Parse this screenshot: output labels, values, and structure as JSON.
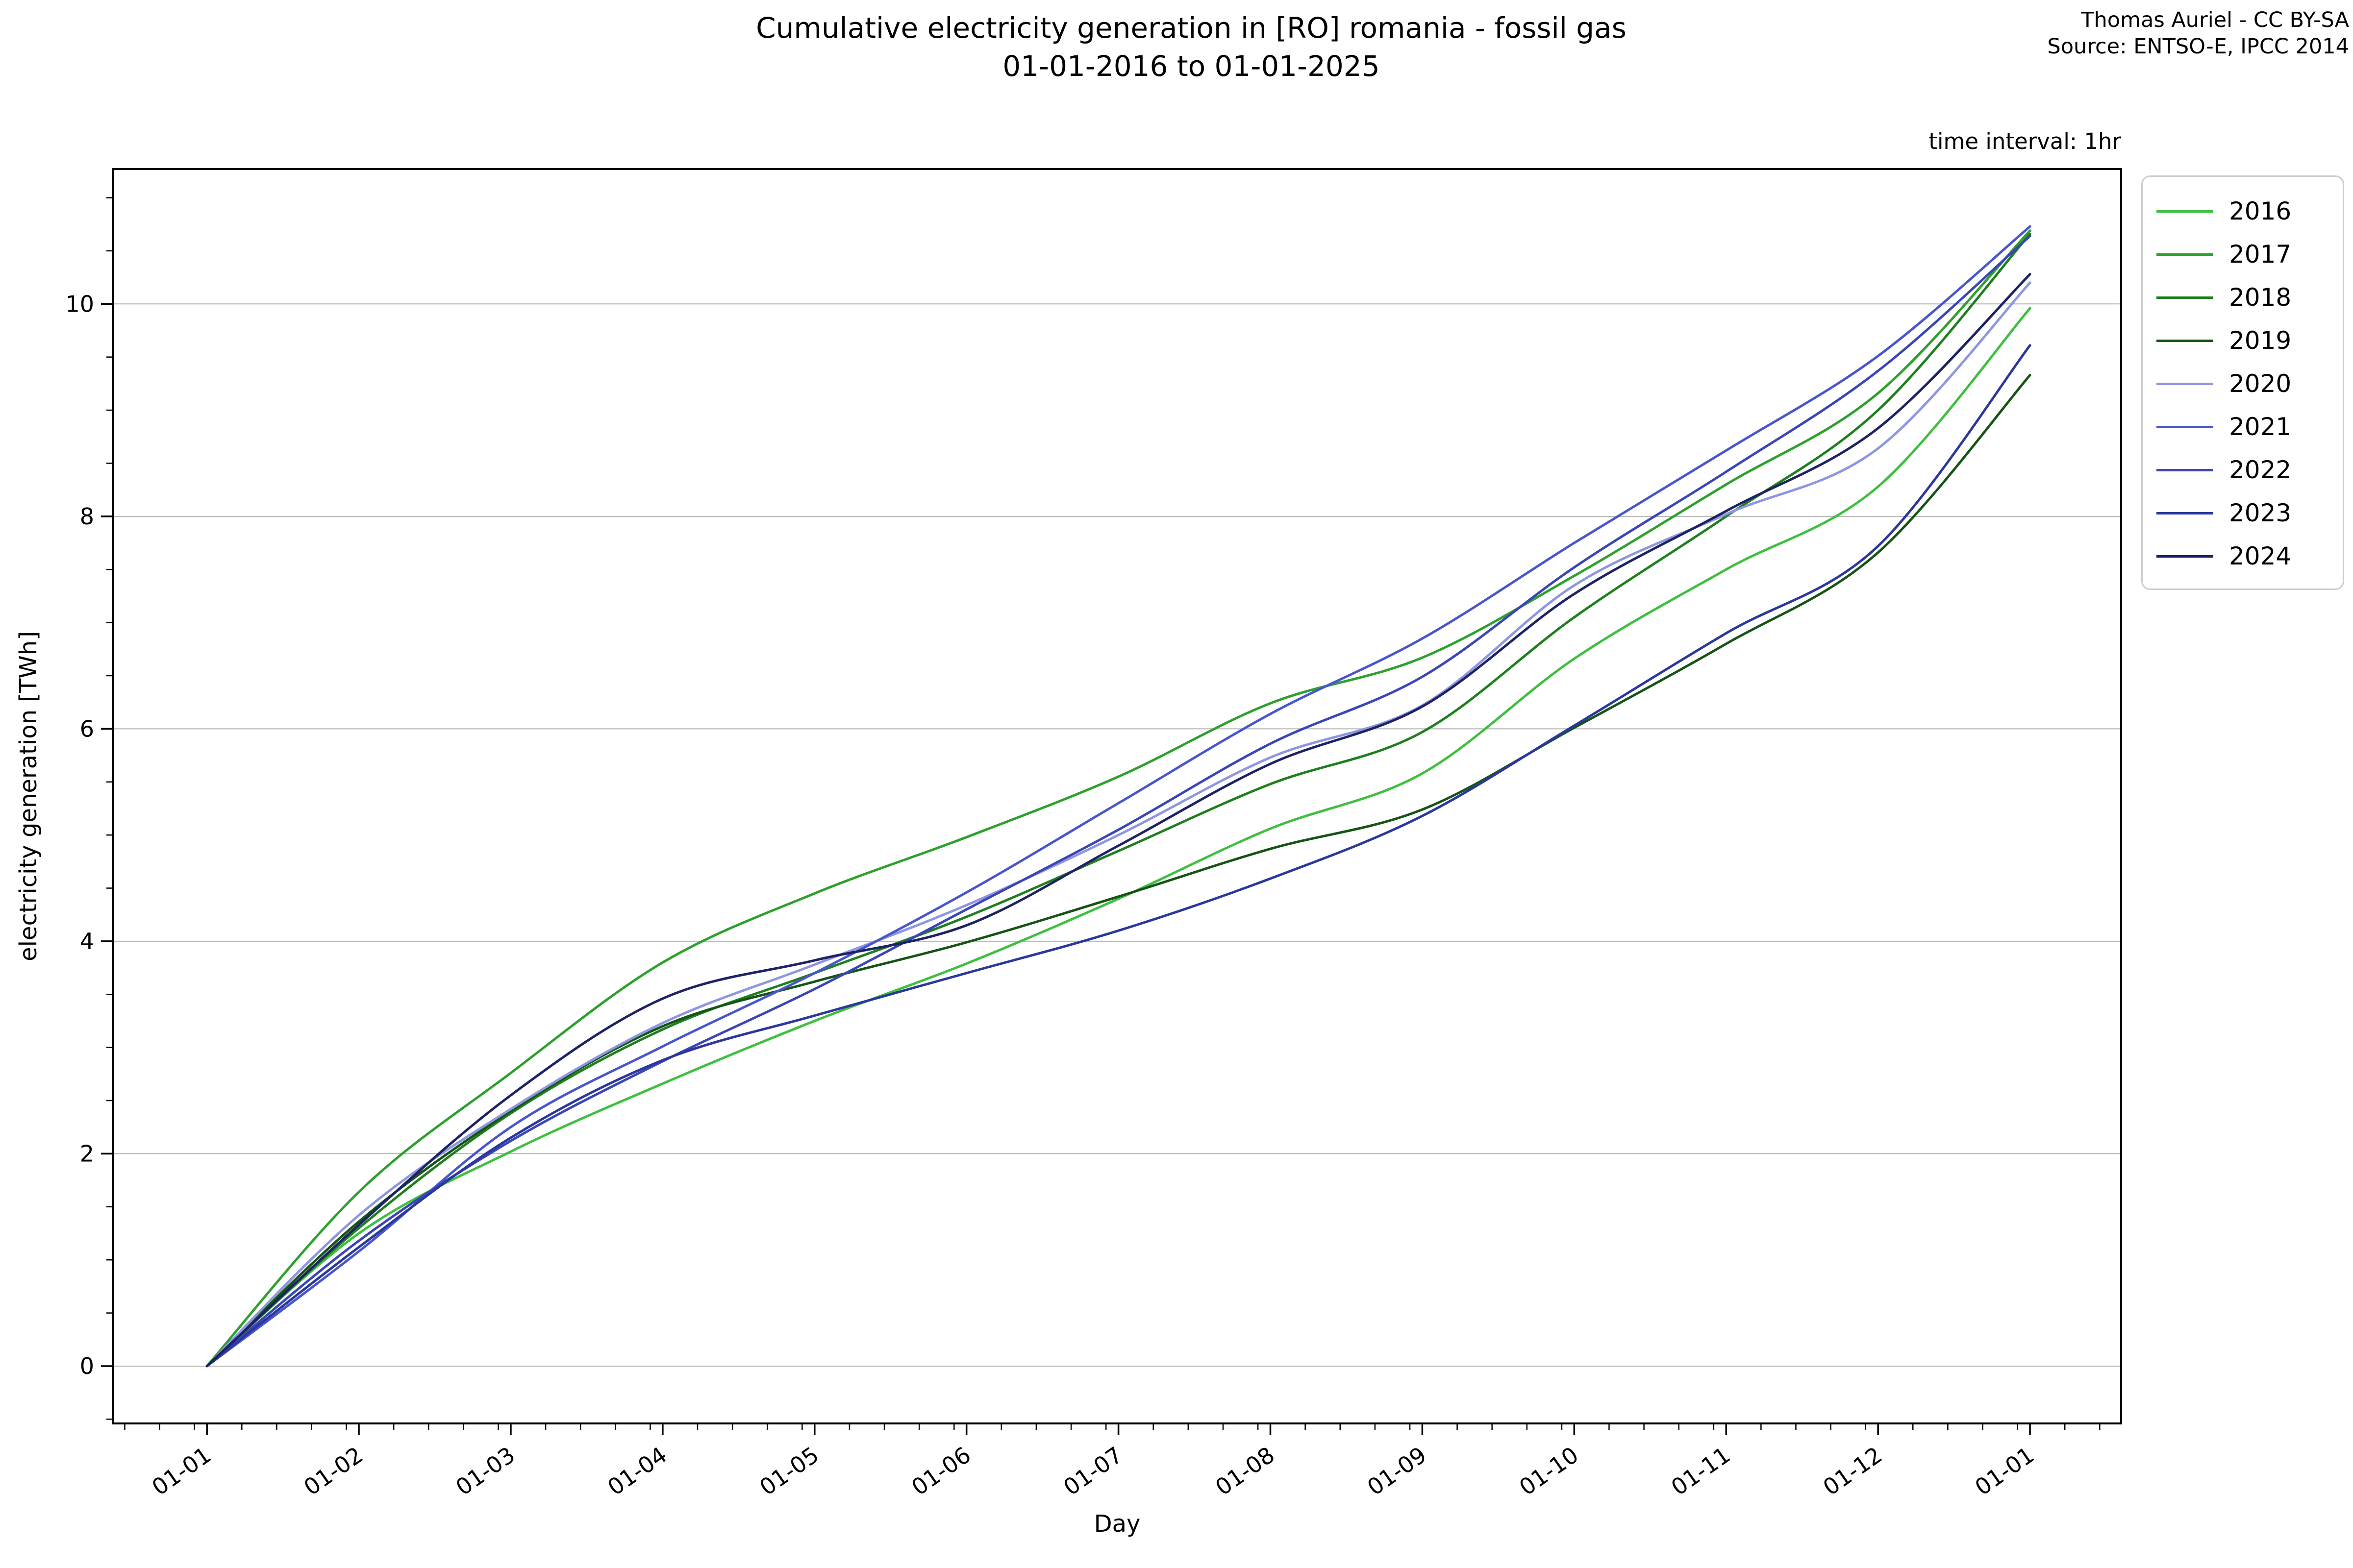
{
  "title": {
    "line1": "Cumulative electricity generation in [RO] romania - fossil gas",
    "line2": "01-01-2016 to 01-01-2025"
  },
  "attribution": {
    "line1": "Thomas Auriel - CC BY-SA",
    "line2": "Source: ENTSO-E, IPCC 2014"
  },
  "annotations": {
    "time_interval": "time interval: 1hr"
  },
  "chart_data": {
    "type": "line",
    "title": "Cumulative electricity generation in [RO] romania - fossil gas 01-01-2016 to 01-01-2025",
    "xlabel": "Day",
    "ylabel": "electricity generation [TWh]",
    "x_tick_labels": [
      "01-01",
      "01-02",
      "01-03",
      "01-04",
      "01-05",
      "01-06",
      "01-07",
      "01-08",
      "01-09",
      "01-10",
      "01-11",
      "01-12",
      "01-01"
    ],
    "y_ticks": [
      0,
      2,
      4,
      6,
      8,
      10
    ],
    "xlim_months": [
      -0.62,
      12.6
    ],
    "ylim": [
      -0.54,
      11.27
    ],
    "grid": "horizontal-only",
    "grid_color": "#b2b2b2",
    "legend_position": "outside-upper-right",
    "x_units": "month start index, 0 = Jan 1, 12 = next Jan 1",
    "series": [
      {
        "name": "2016",
        "color": "#3fbf3f",
        "values": [
          0,
          1.25,
          2.02,
          2.66,
          3.25,
          3.79,
          4.4,
          5.06,
          5.58,
          6.66,
          7.5,
          8.28,
          9.96
        ]
      },
      {
        "name": "2017",
        "color": "#2da02d",
        "values": [
          0,
          1.64,
          2.76,
          3.8,
          4.45,
          4.98,
          5.55,
          6.24,
          6.67,
          7.44,
          8.3,
          9.16,
          10.69
        ]
      },
      {
        "name": "2018",
        "color": "#1f7f1f",
        "values": [
          0,
          1.3,
          2.38,
          3.17,
          3.7,
          4.23,
          4.85,
          5.48,
          5.97,
          7.05,
          8.0,
          9.0,
          10.66
        ]
      },
      {
        "name": "2019",
        "color": "#155415",
        "values": [
          0,
          1.36,
          2.4,
          3.2,
          3.62,
          3.99,
          4.42,
          4.87,
          5.24,
          6.01,
          6.8,
          7.66,
          9.33
        ]
      },
      {
        "name": "2020",
        "color": "#8e96e0",
        "values": [
          0,
          1.42,
          2.42,
          3.23,
          3.78,
          4.34,
          5.0,
          5.73,
          6.22,
          7.35,
          8.02,
          8.64,
          10.2
        ]
      },
      {
        "name": "2021",
        "color": "#4856cd",
        "values": [
          0,
          1.08,
          2.25,
          3.01,
          3.7,
          4.46,
          5.3,
          6.14,
          6.85,
          7.75,
          8.62,
          9.51,
          10.73
        ]
      },
      {
        "name": "2022",
        "color": "#3945b8",
        "values": [
          0,
          1.18,
          2.12,
          2.87,
          3.55,
          4.3,
          5.05,
          5.86,
          6.49,
          7.52,
          8.42,
          9.37,
          10.64
        ]
      },
      {
        "name": "2023",
        "color": "#2b379c",
        "values": [
          0,
          1.12,
          2.15,
          2.88,
          3.3,
          3.7,
          4.1,
          4.59,
          5.18,
          6.03,
          6.9,
          7.72,
          9.61
        ]
      },
      {
        "name": "2024",
        "color": "#1c2263",
        "values": [
          0,
          1.33,
          2.55,
          3.46,
          3.82,
          4.15,
          4.9,
          5.67,
          6.21,
          7.27,
          8.05,
          8.83,
          10.28
        ]
      }
    ]
  }
}
